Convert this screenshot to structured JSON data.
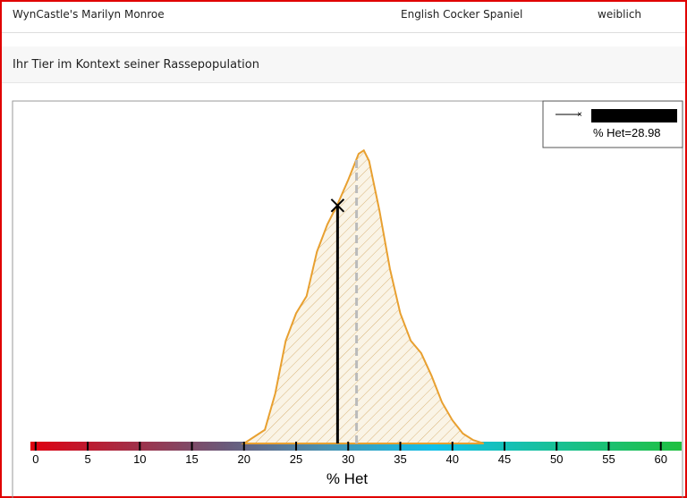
{
  "header": {
    "name": "WynCastle's Marilyn Monroe",
    "breed": "English Cocker Spaniel",
    "sex": "weiblich"
  },
  "section_title": "Ihr Tier im Kontext seiner Rassepopulation",
  "chart_data": {
    "type": "area",
    "color": "#e8a030",
    "x": [
      20,
      22,
      23,
      24,
      25,
      26,
      27,
      28,
      29,
      30,
      31,
      31.5,
      32,
      33,
      34,
      35,
      36,
      37,
      38,
      39,
      40,
      41,
      42,
      43
    ],
    "values": [
      0,
      0.004,
      0.0146,
      0.03,
      0.038,
      0.043,
      0.056,
      0.064,
      0.07,
      0.077,
      0.0846,
      0.0856,
      0.0825,
      0.068,
      0.051,
      0.038,
      0.03,
      0.0264,
      0.0198,
      0.012,
      0.0068,
      0.0029,
      0.001,
      0
    ],
    "xlim": [
      -0.5,
      62
    ],
    "ylim": [
      0,
      0.1
    ],
    "xticks": [
      0,
      5,
      10,
      15,
      20,
      25,
      30,
      35,
      40,
      45,
      50,
      55,
      60
    ],
    "xlabel": "% Het",
    "marker_x": 28.98,
    "marker_y": 0.0695,
    "mean_x": 30.8,
    "legend_label": "% Het=28.98",
    "legend_position": "upper right"
  }
}
